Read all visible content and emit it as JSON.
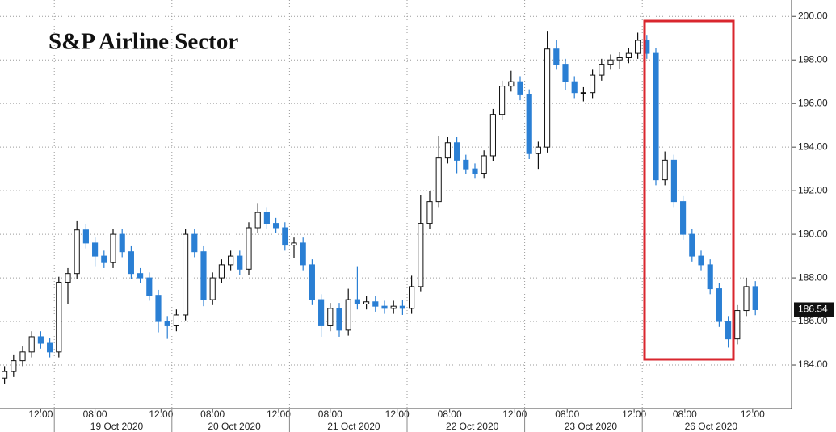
{
  "chart_data": {
    "type": "candlestick",
    "title": "S&P Airline Sector",
    "up_color": "#ffffff",
    "down_color": "#2a7fd4",
    "grid": true,
    "xlim": [
      -0.5,
      87
    ],
    "ylim": [
      182,
      200.75
    ],
    "yticks": [
      {
        "value": 184,
        "label": "184.00"
      },
      {
        "value": 186,
        "label": "186.00"
      },
      {
        "value": 188,
        "label": "188.00"
      },
      {
        "value": 190,
        "label": "190.00"
      },
      {
        "value": 192,
        "label": "192.00"
      },
      {
        "value": 194,
        "label": "194.00"
      },
      {
        "value": 196,
        "label": "196.00"
      },
      {
        "value": 198,
        "label": "198.00"
      },
      {
        "value": 200,
        "label": "200.00"
      }
    ],
    "xticks": [
      {
        "value": 4,
        "label": "12:00"
      },
      {
        "value": 10,
        "label": "08:00"
      },
      {
        "value": 17.3,
        "label": "12:00"
      },
      {
        "value": 23,
        "label": "08:00"
      },
      {
        "value": 30.3,
        "label": "12:00"
      },
      {
        "value": 36,
        "label": "08:00"
      },
      {
        "value": 43.4,
        "label": "12:00"
      },
      {
        "value": 49.2,
        "label": "08:00"
      },
      {
        "value": 56.4,
        "label": "12:00"
      },
      {
        "value": 62.2,
        "label": "08:00"
      },
      {
        "value": 69.6,
        "label": "12:00"
      },
      {
        "value": 75.2,
        "label": "08:00"
      },
      {
        "value": 82.7,
        "label": "12:00"
      }
    ],
    "day_ticks": [
      {
        "value": 12.4,
        "label": "19 Oct 2020"
      },
      {
        "value": 25.4,
        "label": "20 Oct 2020"
      },
      {
        "value": 38.6,
        "label": "21 Oct 2020"
      },
      {
        "value": 51.7,
        "label": "22 Oct 2020"
      },
      {
        "value": 64.8,
        "label": "23 Oct 2020"
      },
      {
        "value": 78.1,
        "label": "26 Oct 2020"
      }
    ],
    "day_breaks": [
      5.5,
      18.5,
      31.5,
      44.5,
      57.5,
      70.5
    ],
    "candles": [
      [
        183.4,
        183.95,
        183.15,
        183.7
      ],
      [
        183.7,
        184.45,
        183.45,
        184.2
      ],
      [
        184.2,
        184.85,
        183.95,
        184.6
      ],
      [
        184.6,
        185.55,
        184.35,
        185.3
      ],
      [
        185.3,
        185.55,
        184.75,
        185.0
      ],
      [
        185.0,
        185.25,
        184.35,
        184.6
      ],
      [
        184.6,
        188.05,
        184.35,
        187.8
      ],
      [
        187.8,
        188.45,
        186.8,
        188.2
      ],
      [
        188.2,
        190.6,
        187.95,
        190.2
      ],
      [
        190.2,
        190.45,
        189.35,
        189.6
      ],
      [
        189.6,
        189.85,
        188.5,
        189.0
      ],
      [
        189.0,
        189.25,
        188.45,
        188.7
      ],
      [
        188.7,
        190.25,
        188.45,
        190.0
      ],
      [
        190.0,
        190.25,
        188.95,
        189.2
      ],
      [
        189.2,
        189.45,
        187.95,
        188.2
      ],
      [
        188.2,
        188.45,
        187.75,
        188.0
      ],
      [
        188.0,
        188.25,
        186.95,
        187.2
      ],
      [
        187.2,
        187.45,
        185.5,
        186.0
      ],
      [
        186.0,
        186.25,
        185.2,
        185.8
      ],
      [
        185.8,
        186.55,
        185.55,
        186.3
      ],
      [
        186.3,
        190.25,
        186.05,
        190.0
      ],
      [
        190.0,
        190.25,
        188.95,
        189.2
      ],
      [
        189.2,
        189.45,
        186.7,
        187.0
      ],
      [
        187.0,
        188.25,
        186.75,
        188.0
      ],
      [
        188.0,
        188.85,
        187.75,
        188.6
      ],
      [
        188.6,
        189.25,
        188.35,
        189.0
      ],
      [
        189.0,
        189.25,
        188.15,
        188.4
      ],
      [
        188.4,
        190.55,
        188.15,
        190.3
      ],
      [
        190.3,
        191.4,
        190.05,
        191.0
      ],
      [
        191.0,
        191.25,
        190.25,
        190.5
      ],
      [
        190.5,
        190.75,
        190.05,
        190.3
      ],
      [
        190.3,
        190.55,
        189.25,
        189.5
      ],
      [
        189.5,
        189.85,
        188.9,
        189.6
      ],
      [
        189.6,
        189.85,
        188.35,
        188.6
      ],
      [
        188.6,
        188.85,
        186.75,
        187.0
      ],
      [
        187.0,
        187.25,
        185.3,
        185.8
      ],
      [
        185.8,
        186.85,
        185.55,
        186.6
      ],
      [
        186.6,
        186.85,
        185.3,
        185.6
      ],
      [
        185.6,
        187.5,
        185.35,
        187.0
      ],
      [
        187.0,
        188.5,
        186.55,
        186.8
      ],
      [
        186.8,
        187.15,
        186.55,
        186.9
      ],
      [
        186.9,
        187.15,
        186.45,
        186.7
      ],
      [
        186.7,
        186.95,
        186.35,
        186.6
      ],
      [
        186.6,
        186.95,
        186.35,
        186.7
      ],
      [
        186.7,
        187.0,
        186.3,
        186.6
      ],
      [
        186.6,
        188.1,
        186.35,
        187.6
      ],
      [
        187.6,
        191.8,
        187.35,
        190.5
      ],
      [
        190.5,
        192.0,
        190.25,
        191.5
      ],
      [
        191.5,
        194.5,
        191.25,
        193.5
      ],
      [
        193.5,
        194.45,
        193.25,
        194.2
      ],
      [
        194.2,
        194.45,
        192.8,
        193.4
      ],
      [
        193.4,
        193.65,
        192.75,
        193.0
      ],
      [
        193.0,
        193.25,
        192.55,
        192.8
      ],
      [
        192.8,
        193.85,
        192.55,
        193.6
      ],
      [
        193.6,
        195.75,
        193.35,
        195.5
      ],
      [
        195.5,
        197.05,
        195.25,
        196.8
      ],
      [
        196.8,
        197.5,
        196.55,
        197.0
      ],
      [
        197.0,
        197.25,
        196.15,
        196.4
      ],
      [
        196.4,
        196.65,
        193.45,
        193.7
      ],
      [
        193.7,
        194.25,
        193.0,
        194.0
      ],
      [
        194.0,
        199.3,
        193.75,
        198.5
      ],
      [
        198.5,
        198.9,
        197.55,
        197.8
      ],
      [
        197.8,
        198.05,
        196.6,
        197.0
      ],
      [
        197.0,
        197.25,
        196.25,
        196.5
      ],
      [
        196.5,
        196.75,
        196.1,
        196.5
      ],
      [
        196.5,
        197.55,
        196.25,
        197.3
      ],
      [
        197.3,
        198.05,
        197.05,
        197.8
      ],
      [
        197.8,
        198.25,
        197.55,
        198.0
      ],
      [
        198.0,
        198.35,
        197.6,
        198.1
      ],
      [
        198.1,
        198.55,
        197.85,
        198.3
      ],
      [
        198.3,
        199.25,
        198.05,
        198.9
      ],
      [
        198.9,
        199.15,
        198.05,
        198.3
      ],
      [
        198.3,
        198.55,
        192.25,
        192.5
      ],
      [
        192.5,
        193.8,
        192.25,
        193.4
      ],
      [
        193.4,
        193.65,
        191.25,
        191.5
      ],
      [
        191.5,
        191.75,
        189.75,
        190.0
      ],
      [
        190.0,
        190.25,
        188.75,
        189.0
      ],
      [
        189.0,
        189.25,
        188.35,
        188.6
      ],
      [
        188.6,
        188.85,
        187.25,
        187.5
      ],
      [
        187.5,
        187.75,
        185.75,
        186.0
      ],
      [
        186.0,
        186.25,
        184.8,
        185.2
      ],
      [
        185.2,
        186.75,
        184.95,
        186.5
      ],
      [
        186.5,
        188.0,
        186.25,
        187.6
      ],
      [
        187.6,
        187.85,
        186.29,
        186.54
      ]
    ]
  }
}
